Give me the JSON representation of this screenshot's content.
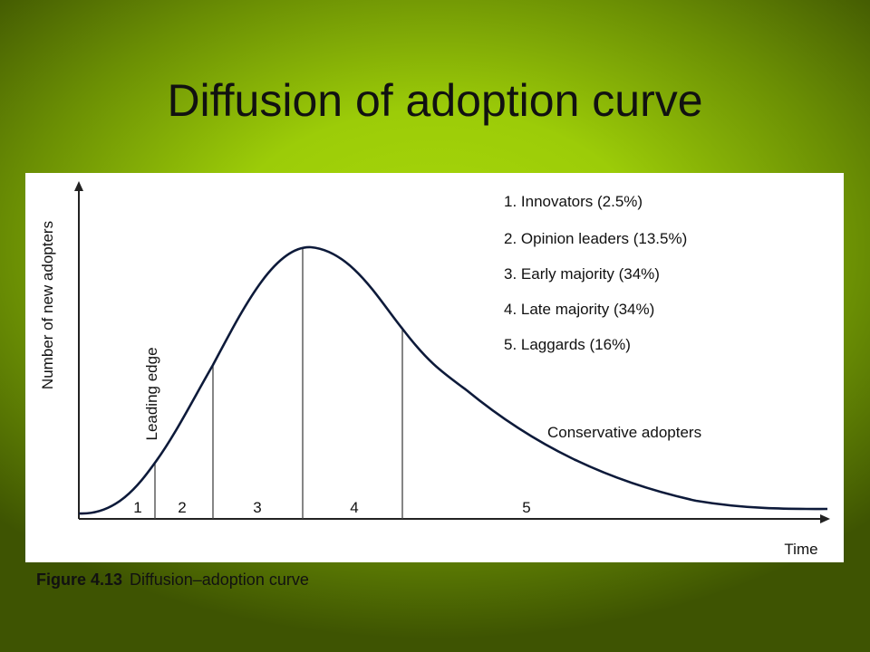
{
  "slide": {
    "title": "Diffusion of adoption curve",
    "caption_figure": "Figure 4.13",
    "caption_text": "Diffusion–adoption curve"
  },
  "chart_data": {
    "type": "line",
    "ylabel": "Number of new adopters",
    "xlabel": "Time",
    "grid": false,
    "legend": "top-right",
    "segments": [
      "1",
      "2",
      "3",
      "4",
      "5"
    ],
    "legend_items": [
      "1. Innovators (2.5%)",
      "2. Opinion leaders (13.5%)",
      "3. Early majority (34%)",
      "4. Late majority (34%)",
      "5. Laggards (16%)"
    ],
    "annotations": {
      "leading_edge": "Leading edge",
      "tail": "Conservative adopters"
    }
  },
  "colors": {
    "curve": "#0d1a3a",
    "axis": "#222222",
    "background_accent": "#9ccc08"
  }
}
